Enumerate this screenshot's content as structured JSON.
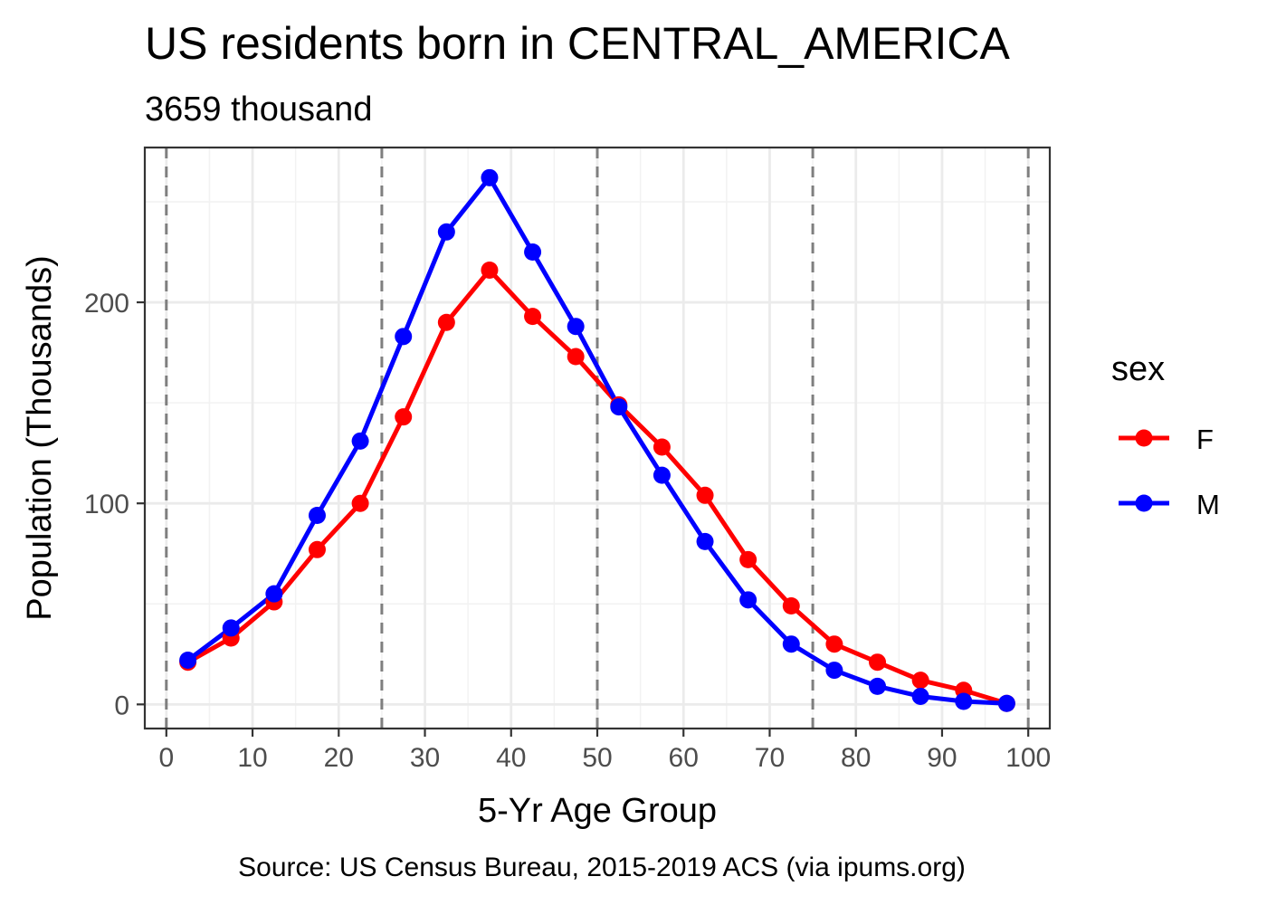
{
  "chart_data": {
    "type": "line",
    "title": "US residents born in CENTRAL_AMERICA",
    "subtitle": "3659 thousand",
    "xlabel": "5-Yr Age Group",
    "ylabel": "Population (Thousands)",
    "caption": "Source: US Census Bureau, 2015-2019 ACS (via ipums.org)",
    "xlim": [
      -2.5,
      102.5
    ],
    "ylim": [
      -12,
      277
    ],
    "x_ticks": [
      0,
      10,
      20,
      30,
      40,
      50,
      60,
      70,
      80,
      90,
      100
    ],
    "x_tick_labels": [
      "0",
      "10",
      "20",
      "30",
      "40",
      "50",
      "60",
      "70",
      "80",
      "90",
      "100"
    ],
    "y_ticks": [
      0,
      100,
      200
    ],
    "y_tick_labels": [
      "0",
      "100",
      "200"
    ],
    "y_minor_ticks": [
      50,
      150,
      250
    ],
    "x_minor_ticks": [
      5,
      15,
      25,
      35,
      45,
      55,
      65,
      75,
      85,
      95
    ],
    "vlines": [
      0,
      25,
      50,
      75,
      100
    ],
    "grid": true,
    "legend": {
      "title": "sex",
      "position": "right"
    },
    "x": [
      2.5,
      7.5,
      12.5,
      17.5,
      22.5,
      27.5,
      32.5,
      37.5,
      42.5,
      47.5,
      52.5,
      57.5,
      62.5,
      67.5,
      72.5,
      77.5,
      82.5,
      87.5,
      92.5,
      97.5
    ],
    "series": [
      {
        "name": "F",
        "color": "#ff0000",
        "values": [
          21,
          33,
          51,
          77,
          100,
          143,
          190,
          216,
          193,
          173,
          149,
          128,
          104,
          72,
          49,
          30,
          21,
          12,
          7,
          0.5
        ]
      },
      {
        "name": "M",
        "color": "#0000ff",
        "values": [
          22,
          38,
          55,
          94,
          131,
          183,
          235,
          262,
          225,
          188,
          148,
          114,
          81,
          52,
          30,
          17,
          9,
          4,
          1.5,
          0.5
        ]
      }
    ]
  }
}
